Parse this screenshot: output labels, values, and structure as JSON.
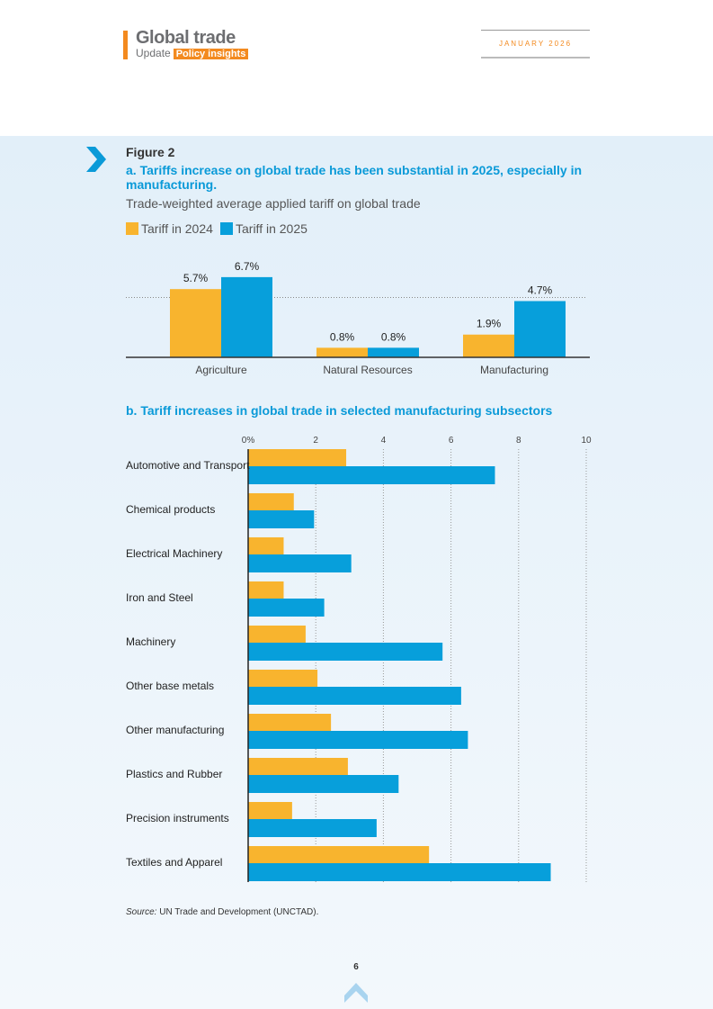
{
  "header": {
    "brand": "Global trade",
    "update": "Update",
    "tag": "Policy insights",
    "date": "JANUARY 2026"
  },
  "figure": {
    "label": "Figure 2",
    "title_a": "a. Tariffs increase on global trade has been substantial in 2025, especially in manufacturing.",
    "subtitle_a": "Trade-weighted average applied tariff on global trade",
    "title_b": "b. Tariff increases in global trade in selected manufacturing subsectors",
    "source_label": "Source:",
    "source": " UN Trade and Development (UNCTAD)."
  },
  "page_number": "6",
  "colors": {
    "tariff_2024": "#f8b42e",
    "tariff_2025": "#079fdb",
    "title": "#0a9ad8",
    "brand_accent": "#f38a1f"
  },
  "chart_data": [
    {
      "type": "bar",
      "categories": [
        "Agriculture",
        "Natural Resources",
        "Manufacturing"
      ],
      "series": [
        {
          "name": "Tariff in 2024",
          "values": [
            5.7,
            0.8,
            1.9
          ],
          "labels": [
            "5.7%",
            "0.8%",
            "1.9%"
          ]
        },
        {
          "name": "Tariff in 2025",
          "values": [
            6.7,
            0.8,
            4.7
          ],
          "labels": [
            "6.7%",
            "0.8%",
            "4.7%"
          ]
        }
      ],
      "reference_line": 5,
      "legend": "top-left",
      "grid": false
    },
    {
      "type": "bar",
      "orientation": "horizontal",
      "categories": [
        "Automotive and Transport",
        "Chemical products",
        "Electrical Machinery",
        "Iron and Steel",
        "Machinery",
        "Other base metals",
        "Other manufacturing",
        "Plastics and Rubber",
        "Precision instruments",
        "Textiles and Apparel"
      ],
      "series": [
        {
          "name": "Tariff in 2024",
          "values": [
            2.9,
            1.35,
            1.05,
            1.05,
            1.7,
            2.05,
            2.45,
            2.95,
            1.3,
            5.35
          ]
        },
        {
          "name": "Tariff in 2025",
          "values": [
            7.3,
            1.95,
            3.05,
            2.25,
            5.75,
            6.3,
            6.5,
            4.45,
            3.8,
            8.95
          ]
        }
      ],
      "xlim": [
        0,
        10
      ],
      "xticks": [
        "0%",
        "2",
        "4",
        "6",
        "8",
        "10"
      ],
      "grid": true
    }
  ]
}
